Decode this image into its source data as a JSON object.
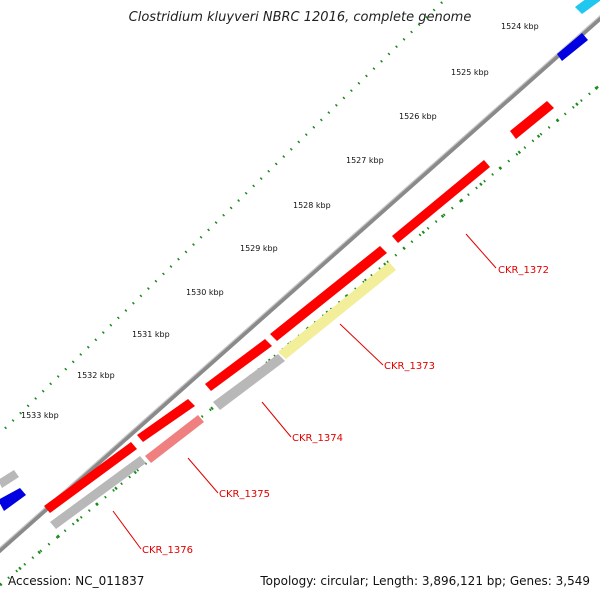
{
  "title": "Clostridium kluyveri NBRC 12016, complete genome",
  "footer": {
    "accession": "Accession: NC_011837",
    "summary": "Topology: circular; Length: 3,896,121 bp; Genes: 3,549"
  },
  "kbp_labels": [
    "1524 kbp",
    "1525 kbp",
    "1526 kbp",
    "1527 kbp",
    "1528 kbp",
    "1529 kbp",
    "1530 kbp",
    "1531 kbp",
    "1532 kbp",
    "1533 kbp"
  ],
  "gene_labels": [
    "CKR_1372",
    "CKR_1373",
    "CKR_1374",
    "CKR_1375",
    "CKR_1376"
  ],
  "colors": {
    "backbone": "#8a8a8a",
    "gene_red": "#ff0000",
    "gene_red_light": "#f08080",
    "gene_grey": "#b8b8b8",
    "gene_yellow": "#f2ee9a",
    "gene_blue": "#0000e0",
    "gene_cyan": "#20c8f0",
    "ticks_green": "#1a8a1a",
    "label_red": "#e00000"
  }
}
